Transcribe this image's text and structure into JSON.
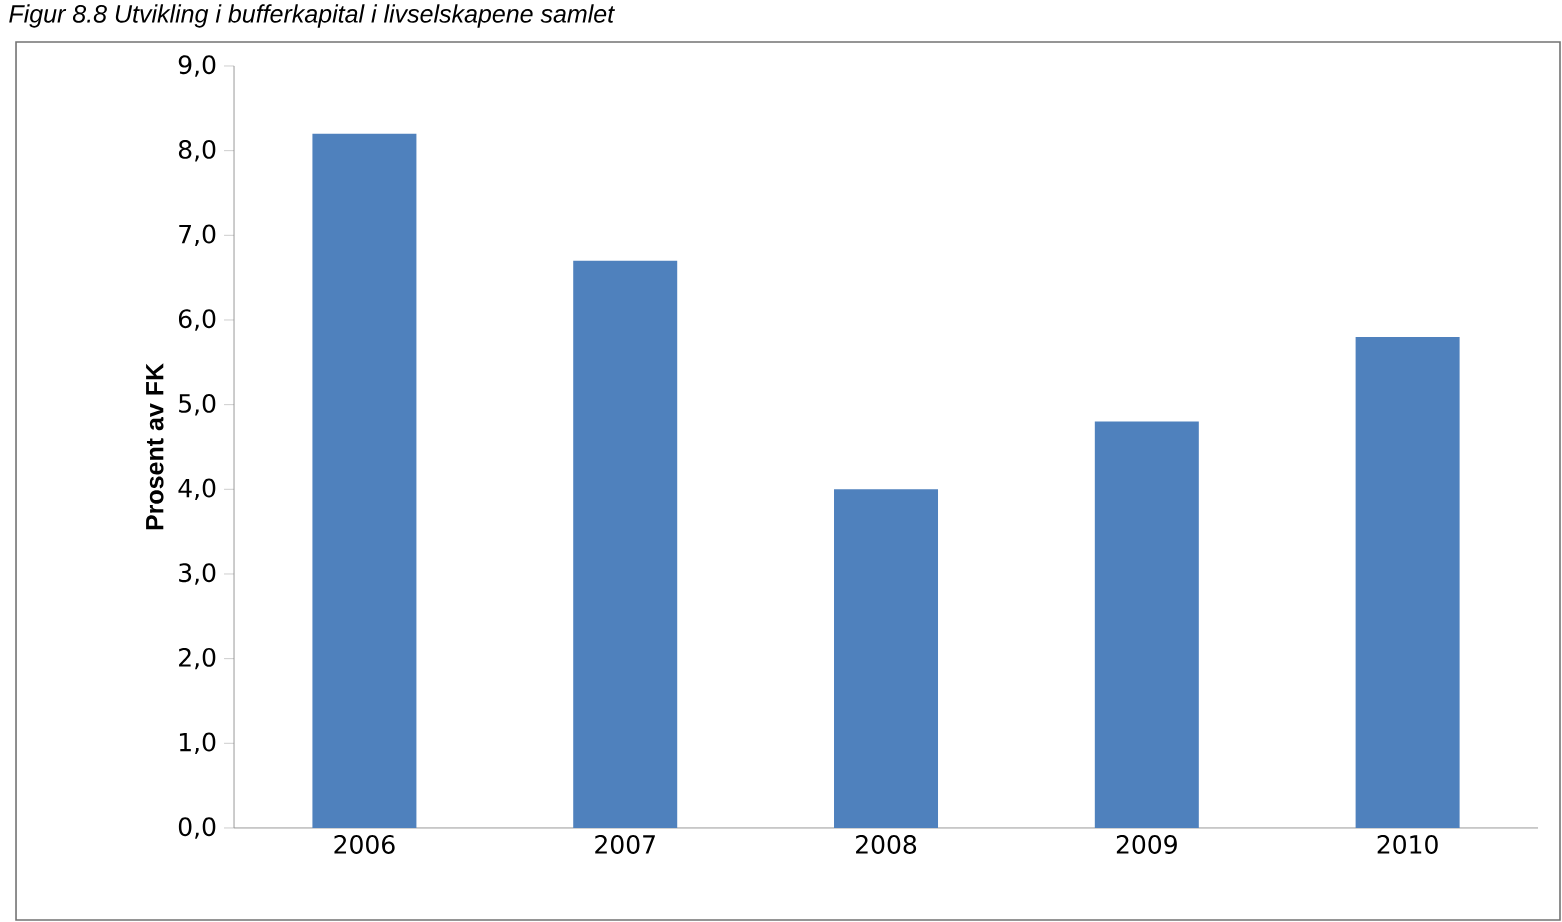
{
  "chart_data": {
    "type": "bar",
    "title": "Figur 8.8 Utvikling i bufferkapital i livselskapene samlet",
    "ylabel": "Prosent av FK",
    "categories": [
      "2006",
      "2007",
      "2008",
      "2009",
      "2010"
    ],
    "values": [
      8.2,
      6.7,
      4.0,
      4.8,
      5.8
    ],
    "color": "#4f81bd",
    "ylim": [
      0,
      9
    ],
    "yticks": [
      {
        "value": 0,
        "label": "0,0"
      },
      {
        "value": 1,
        "label": "1,0"
      },
      {
        "value": 2,
        "label": "2,0"
      },
      {
        "value": 3,
        "label": "3,0"
      },
      {
        "value": 4,
        "label": "4,0"
      },
      {
        "value": 5,
        "label": "5,0"
      },
      {
        "value": 6,
        "label": "6,0"
      },
      {
        "value": 7,
        "label": "7,0"
      },
      {
        "value": 8,
        "label": "8,0"
      },
      {
        "value": 9,
        "label": "9,0"
      }
    ],
    "grid": false
  }
}
